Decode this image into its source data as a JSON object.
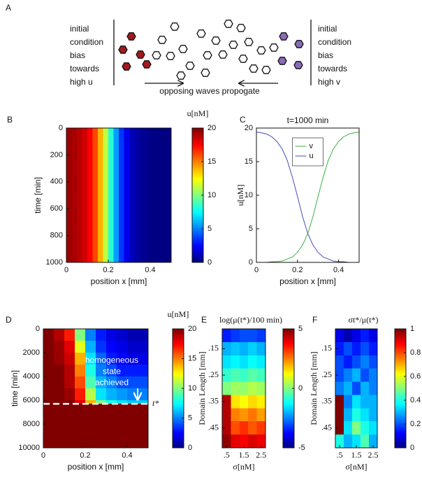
{
  "panel_labels": [
    "A",
    "B",
    "C",
    "D",
    "E",
    "F"
  ],
  "diagram": {
    "left_text": [
      "initial",
      "condition",
      "bias",
      "towards",
      "high u"
    ],
    "right_text": [
      "initial",
      "condition",
      "bias",
      "towards",
      "high v"
    ],
    "caption": "opposing waves propogate"
  },
  "chart_data": [
    {
      "type": "heatmap",
      "xlabel": "position x [mm]",
      "ylabel": "time  [min]",
      "colorbar_label": "u[nM]",
      "colormap": "jet",
      "xbins": [
        0,
        0.025,
        0.05,
        0.075,
        0.1,
        0.125,
        0.15,
        0.175,
        0.2,
        0.225,
        0.25,
        0.275,
        0.3,
        0.325,
        0.35,
        0.375,
        0.4,
        0.425,
        0.45,
        0.475,
        0.5
      ],
      "ybins": [
        0,
        1000
      ],
      "z": [
        [
          19.4,
          19.2,
          18.9,
          18.4,
          17.5,
          16.1,
          14,
          11.3,
          8.3,
          5.6,
          3.5,
          2.1,
          1.2,
          0.7,
          0.4,
          0.2,
          0.1,
          0.1,
          0,
          0
        ]
      ],
      "xlim": [
        0,
        0.5
      ],
      "xticks": [
        0,
        0.2,
        0.4
      ],
      "ylim": [
        0,
        1000
      ],
      "yticks": [
        0,
        200,
        400,
        600,
        800,
        1000
      ],
      "y_inverted": true,
      "clim": [
        0,
        20
      ],
      "cticks": [
        0,
        5,
        10,
        15,
        20
      ]
    },
    {
      "type": "line",
      "title": "t=1000 min",
      "xlabel": "position x [mm]",
      "ylabel": "u[nM]",
      "x": [
        0,
        0.025,
        0.05,
        0.075,
        0.1,
        0.125,
        0.15,
        0.175,
        0.2,
        0.225,
        0.25,
        0.275,
        0.3,
        0.325,
        0.35,
        0.375,
        0.4,
        0.425,
        0.45,
        0.475,
        0.5
      ],
      "series": [
        {
          "name": "v",
          "color": "#3cb043",
          "values": [
            0,
            0,
            0,
            0.1,
            0.1,
            0.2,
            0.5,
            0.8,
            1.5,
            2.6,
            4.3,
            6.8,
            9.8,
            12.7,
            15.2,
            16.9,
            18.0,
            18.7,
            19.1,
            19.3,
            19.4
          ]
        },
        {
          "name": "u",
          "color": "#4a4ab8",
          "values": [
            19.4,
            19.3,
            19.1,
            18.7,
            18.0,
            16.9,
            15.2,
            12.7,
            9.8,
            6.8,
            4.3,
            2.6,
            1.5,
            0.8,
            0.5,
            0.2,
            0.1,
            0.1,
            0,
            0,
            0
          ]
        }
      ],
      "xlim": [
        0,
        0.5
      ],
      "xticks": [
        0,
        0.2,
        0.4
      ],
      "ylim": [
        0,
        20
      ],
      "yticks": [
        0,
        5,
        10,
        15,
        20
      ],
      "legend": "upper center"
    },
    {
      "type": "heatmap",
      "xlabel": "position x [mm]",
      "ylabel": "time  [min]",
      "colorbar_label": "u[nM]",
      "colormap": "jet",
      "annotation": [
        "homogeneous",
        "state",
        "achieved"
      ],
      "t_star": 6300,
      "t_star_label": "t*",
      "xbins": [
        0,
        0.05,
        0.1,
        0.15,
        0.2,
        0.25,
        0.3,
        0.35,
        0.4,
        0.45,
        0.5
      ],
      "ybins": [
        0,
        1000,
        2000,
        3000,
        4000,
        5000,
        6000,
        6300,
        10000
      ],
      "z": [
        [
          20,
          19,
          17,
          10,
          5,
          3,
          2,
          1.5,
          1,
          1
        ],
        [
          20,
          19.5,
          18,
          12,
          6,
          3.5,
          2.5,
          2,
          1.5,
          1.5
        ],
        [
          20,
          19.5,
          18.5,
          14,
          7,
          4.5,
          3,
          2.5,
          2,
          2
        ],
        [
          20,
          20,
          19,
          15,
          8,
          5,
          4,
          3,
          3,
          3
        ],
        [
          20,
          20,
          19,
          16,
          9,
          6,
          5,
          4,
          4,
          4
        ],
        [
          20,
          20,
          19.5,
          17,
          11,
          7,
          6,
          5.5,
          5,
          5
        ],
        [
          20,
          20,
          20,
          18,
          14,
          10,
          8,
          7,
          6.5,
          6.5
        ],
        [
          20,
          20,
          20,
          20,
          20,
          20,
          20,
          20,
          20,
          20
        ]
      ],
      "xlim": [
        0,
        0.5
      ],
      "xticks": [
        0,
        0.2,
        0.4
      ],
      "ylim": [
        0,
        10000
      ],
      "yticks": [
        0,
        2000,
        4000,
        6000,
        8000,
        10000
      ],
      "y_inverted": true,
      "clim": [
        0,
        20
      ],
      "cticks": [
        0,
        5,
        10,
        15,
        20
      ]
    },
    {
      "type": "heatmap",
      "title": "log(μ(t*)/100 min)",
      "xlabel": "σ[nM]",
      "ylabel": "Domain Length [mm]",
      "colormap": "jet",
      "xbins": [
        0.25,
        0.75,
        1.25,
        1.75,
        2.25,
        2.75
      ],
      "ybins": [
        0.075,
        0.125,
        0.175,
        0.225,
        0.275,
        0.325,
        0.375,
        0.425,
        0.475,
        0.525
      ],
      "z": [
        [
          -3.5,
          -3.2,
          -3,
          -3,
          -3.2
        ],
        [
          -2,
          -1.8,
          -2,
          -1.7,
          -2
        ],
        [
          -1.5,
          -1.3,
          -1.5,
          -1.2,
          -1.4
        ],
        [
          -0.8,
          -0.5,
          -0.7,
          -0.4,
          -0.6
        ],
        [
          0,
          0.3,
          0.2,
          0.5,
          0.3
        ],
        [
          4.5,
          1.5,
          1.2,
          1.6,
          1.4
        ],
        [
          4.5,
          2.5,
          2.3,
          2.6,
          2.2
        ],
        [
          4.5,
          3,
          3.3,
          2.9,
          3.2
        ],
        [
          4.8,
          4,
          3.8,
          4.1,
          3.9
        ]
      ],
      "xlim": [
        0.25,
        2.75
      ],
      "xticks": [
        {
          "value": 0.5,
          "label": ".5"
        },
        1.5,
        2.5
      ],
      "ylim": [
        0.075,
        0.525
      ],
      "yticks": [
        {
          "value": 0.15,
          "label": ".15"
        },
        {
          "value": 0.25,
          "label": ".25"
        },
        {
          "value": 0.35,
          "label": ".35"
        },
        {
          "value": 0.45,
          "label": ".45"
        }
      ],
      "y_inverted": true,
      "clim": [
        -5,
        5
      ],
      "cticks": [
        -5,
        0,
        5
      ]
    },
    {
      "type": "heatmap",
      "title": "σt*/μ(t*)",
      "xlabel": "σ[nM]",
      "ylabel": "Domain Length [mm]",
      "colormap": "jet",
      "xbins": [
        0.25,
        0.75,
        1.25,
        1.75,
        2.25,
        2.75
      ],
      "ybins": [
        0.075,
        0.125,
        0.175,
        0.225,
        0.275,
        0.325,
        0.375,
        0.425,
        0.475,
        0.525
      ],
      "z": [
        [
          0.1,
          0.05,
          0.1,
          0.15,
          0.1
        ],
        [
          0.15,
          0.2,
          0.15,
          0.2,
          0.15
        ],
        [
          0.2,
          0.15,
          0.2,
          0.25,
          0.2
        ],
        [
          0.2,
          0.25,
          0.3,
          0.2,
          0.25
        ],
        [
          0.25,
          0.3,
          0.2,
          0.3,
          0.25
        ],
        [
          1,
          0.25,
          0.35,
          0.3,
          0.3
        ],
        [
          1,
          0.3,
          0.4,
          0.35,
          0.3
        ],
        [
          1,
          0.35,
          0.5,
          0.4,
          0.35
        ],
        [
          0.4,
          0.3,
          0.35,
          0.45,
          0.3
        ]
      ],
      "xlim": [
        0.25,
        2.75
      ],
      "xticks": [
        {
          "value": 0.5,
          "label": ".5"
        },
        1.5,
        2.5
      ],
      "ylim": [
        0.075,
        0.525
      ],
      "yticks": [
        {
          "value": 0.15,
          "label": ".15"
        },
        {
          "value": 0.25,
          "label": ".25"
        },
        {
          "value": 0.35,
          "label": ".35"
        },
        {
          "value": 0.45,
          "label": ".45"
        }
      ],
      "y_inverted": true,
      "clim": [
        0,
        1
      ],
      "cticks": [
        0,
        0.2,
        0.4,
        0.6,
        0.8,
        1
      ]
    }
  ]
}
